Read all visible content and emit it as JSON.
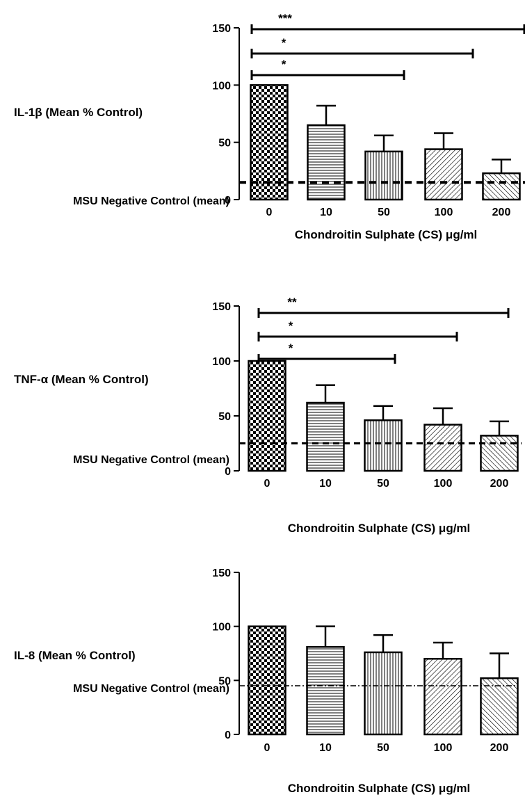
{
  "chart_data": [
    {
      "type": "bar",
      "ylabel": "IL-1β (Mean % Control)",
      "xlabel": "Chondroitin Sulphate (CS) μg/ml",
      "categories": [
        "0",
        "10",
        "50",
        "100",
        "200"
      ],
      "values": [
        100,
        65,
        42,
        44,
        23
      ],
      "errors": [
        0,
        17,
        14,
        14,
        12
      ],
      "ylim": [
        0,
        150
      ],
      "yticks": [
        "0",
        "50",
        "100",
        "150"
      ],
      "reference_line": {
        "label": "MSU Negative Control (mean)",
        "value": 15
      },
      "significance": [
        {
          "label": "***",
          "from": "0",
          "to": "200"
        },
        {
          "label": "*",
          "from": "0",
          "to": "100"
        },
        {
          "label": "*",
          "from": "0",
          "to": "50"
        }
      ],
      "patterns": [
        "checker",
        "hlines",
        "vlines",
        "diag-right",
        "diag-left"
      ]
    },
    {
      "type": "bar",
      "ylabel": "TNF-α (Mean % Control)",
      "xlabel": "Chondroitin Sulphate (CS) μg/ml",
      "categories": [
        "0",
        "10",
        "50",
        "100",
        "200"
      ],
      "values": [
        100,
        62,
        46,
        42,
        32
      ],
      "errors": [
        0,
        16,
        13,
        15,
        13
      ],
      "ylim": [
        0,
        150
      ],
      "yticks": [
        "0",
        "50",
        "100",
        "150"
      ],
      "reference_line": {
        "label": "MSU Negative Control (mean)",
        "value": 25
      },
      "significance": [
        {
          "label": "**",
          "from": "0",
          "to": "200"
        },
        {
          "label": "*",
          "from": "0",
          "to": "100"
        },
        {
          "label": "*",
          "from": "0",
          "to": "50"
        }
      ],
      "patterns": [
        "checker",
        "hlines",
        "vlines",
        "diag-right",
        "diag-left"
      ]
    },
    {
      "type": "bar",
      "ylabel": "IL-8 (Mean % Control)",
      "xlabel": "Chondroitin Sulphate (CS) μg/ml",
      "categories": [
        "0",
        "10",
        "50",
        "100",
        "200"
      ],
      "values": [
        100,
        81,
        76,
        70,
        52
      ],
      "errors": [
        0,
        19,
        16,
        15,
        23
      ],
      "ylim": [
        0,
        150
      ],
      "yticks": [
        "0",
        "50",
        "100",
        "150"
      ],
      "reference_line": {
        "label": "MSU Negative Control (mean)",
        "value": 45
      },
      "significance": [],
      "patterns": [
        "checker",
        "hlines",
        "vlines",
        "diag-right",
        "diag-left"
      ]
    }
  ]
}
